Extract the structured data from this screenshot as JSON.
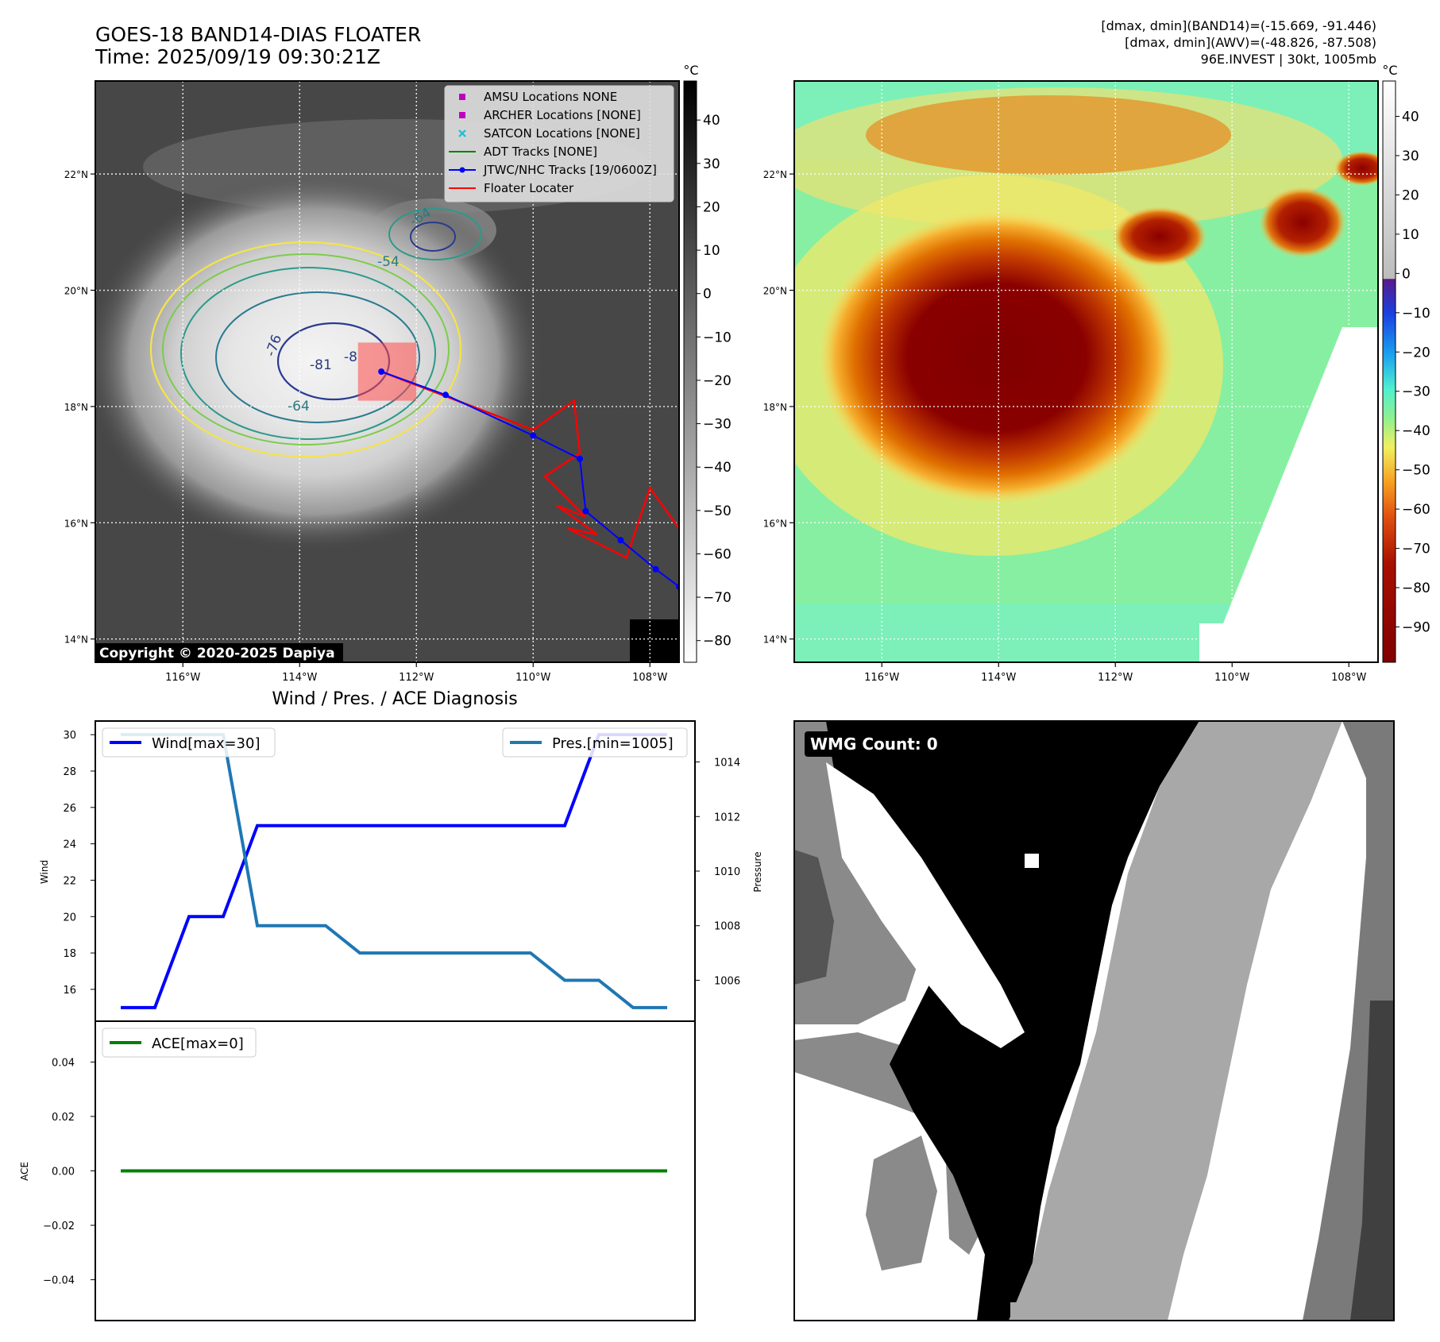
{
  "figure": {
    "title_line1": "GOES-18 BAND14-DIAS FLOATER",
    "title_line2": "Time: 2025/09/19 09:30:21Z",
    "info_lines": [
      "[dmax, dmin](BAND14)=(-15.669, -91.446)",
      "[dmax, dmin](AWV)=(-48.826, -87.508)",
      "96E.INVEST | 30kt, 1005mb"
    ],
    "copyright": "Copyright © 2020-2025 Dapiya"
  },
  "map_axes": {
    "lon_ticks": [
      "116°W",
      "114°W",
      "112°W",
      "110°W",
      "108°W"
    ],
    "lat_ticks": [
      "22°N",
      "20°N",
      "18°N",
      "16°N",
      "14°N"
    ],
    "lon_range": [
      -117.5,
      -107.5
    ],
    "lat_range": [
      13.6,
      23.6
    ]
  },
  "ir_panel": {
    "colorbar_unit": "°C",
    "colorbar_ticks": [
      40,
      30,
      20,
      10,
      0,
      -10,
      -20,
      -30,
      -40,
      -50,
      -60,
      -70,
      -80
    ],
    "colorbar_range": [
      -85,
      49
    ],
    "contour_labels": [
      "-76",
      "-81",
      "-8",
      "-64",
      "-54",
      "-64"
    ],
    "legend": [
      {
        "label": "AMSU Locations NONE",
        "marker": "square",
        "color": "#bf00bf"
      },
      {
        "label": "ARCHER Locations [NONE]",
        "marker": "square",
        "color": "#bf00bf"
      },
      {
        "label": "SATCON Locations [NONE]",
        "marker": "x",
        "color": "#17becf"
      },
      {
        "label": "ADT Tracks [NONE]",
        "marker": "line",
        "color": "#008000"
      },
      {
        "label": "JTWC/NHC Tracks [19/0600Z]",
        "marker": "line-dot",
        "color": "#0000ff"
      },
      {
        "label": "Floater Locater",
        "marker": "line",
        "color": "#ff0000"
      }
    ],
    "jtwc_track": [
      [
        -112.6,
        18.6
      ],
      [
        -111.5,
        18.2
      ],
      [
        -110.0,
        17.5
      ],
      [
        -109.2,
        17.1
      ],
      [
        -109.1,
        16.2
      ],
      [
        -108.5,
        15.7
      ],
      [
        -107.9,
        15.2
      ],
      [
        -107.5,
        14.9
      ]
    ],
    "floater_track": [
      [
        -112.6,
        18.6
      ],
      [
        -110.0,
        17.6
      ],
      [
        -109.3,
        18.1
      ],
      [
        -109.2,
        17.2
      ],
      [
        -109.8,
        16.8
      ],
      [
        -109.1,
        16.1
      ],
      [
        -109.6,
        16.3
      ],
      [
        -108.9,
        15.8
      ],
      [
        -109.4,
        15.9
      ],
      [
        -108.4,
        15.4
      ],
      [
        -108.0,
        16.6
      ],
      [
        -107.5,
        15.9
      ]
    ],
    "floater_box": {
      "lon": [
        -113.0,
        -112.0
      ],
      "lat": [
        18.1,
        19.1
      ]
    }
  },
  "awv_panel": {
    "colorbar_unit": "°C",
    "colorbar_ticks": [
      40,
      30,
      20,
      10,
      0,
      -10,
      -20,
      -30,
      -40,
      -50,
      -60,
      -70,
      -80,
      -90
    ],
    "colorbar_range": [
      -99,
      49
    ]
  },
  "diag_panel": {
    "title": "Wind / Pres. / ACE Diagnosis"
  },
  "chart_data": [
    {
      "type": "line",
      "x": [
        0,
        1,
        2,
        3,
        4,
        5,
        6,
        7,
        8,
        9,
        10,
        11,
        12,
        13,
        14,
        15,
        16
      ],
      "series": [
        {
          "name": "Wind[max=30]",
          "axis": "left",
          "color": "#0000ff",
          "values": [
            15,
            15,
            20,
            20,
            25,
            25,
            25,
            25,
            25,
            25,
            25,
            25,
            25,
            25,
            30,
            30,
            30
          ]
        },
        {
          "name": "Pres.[min=1005]",
          "axis": "right",
          "color": "#1f77b4",
          "values": [
            1015,
            1015,
            1015,
            1015,
            1008,
            1008,
            1008,
            1007,
            1007,
            1007,
            1007,
            1007,
            1007,
            1006,
            1006,
            1005,
            1005
          ]
        }
      ],
      "ylabel_left": "Wind",
      "ylabel_right": "Pressure",
      "ylim_left": [
        14.25,
        30.75
      ],
      "ylim_right": [
        1004.5,
        1015.5
      ],
      "yticks_left": [
        16,
        18,
        20,
        22,
        24,
        26,
        28,
        30
      ],
      "yticks_right": [
        1006,
        1008,
        1010,
        1012,
        1014
      ]
    },
    {
      "type": "line",
      "x": [
        0,
        1,
        2,
        3,
        4,
        5,
        6,
        7,
        8,
        9,
        10,
        11,
        12,
        13,
        14,
        15,
        16
      ],
      "series": [
        {
          "name": "ACE[max=0]",
          "color": "#008000",
          "values": [
            0,
            0,
            0,
            0,
            0,
            0,
            0,
            0,
            0,
            0,
            0,
            0,
            0,
            0,
            0,
            0,
            0
          ]
        }
      ],
      "ylabel": "ACE",
      "ylim": [
        -0.055,
        0.055
      ],
      "yticks": [
        0.04,
        0.02,
        0.0,
        -0.02,
        -0.04
      ]
    }
  ],
  "wmg_panel": {
    "label": "WMG Count: 0"
  }
}
